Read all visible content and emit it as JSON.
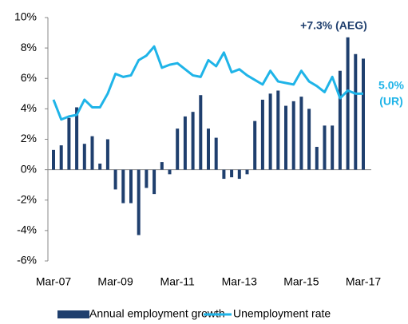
{
  "chart_data": {
    "type": "bar_line",
    "categories": [
      "Mar-07",
      null,
      null,
      null,
      null,
      null,
      null,
      null,
      "Mar-09",
      null,
      null,
      null,
      null,
      null,
      null,
      null,
      "Mar-11",
      null,
      null,
      null,
      null,
      null,
      null,
      null,
      "Mar-13",
      null,
      null,
      null,
      null,
      null,
      null,
      null,
      "Mar-15",
      null,
      null,
      null,
      null,
      null,
      null,
      null,
      "Mar-17"
    ],
    "series": [
      {
        "name": "Annual employment growth",
        "type": "bar",
        "color": "#1f3f6e",
        "values": [
          1.3,
          1.6,
          3.4,
          4.1,
          1.7,
          2.2,
          0.4,
          2.0,
          -1.3,
          -2.2,
          -2.2,
          -4.3,
          -1.2,
          -1.6,
          0.5,
          -0.3,
          2.7,
          3.5,
          3.8,
          4.9,
          2.7,
          2.1,
          -0.6,
          -0.5,
          -0.6,
          -0.3,
          3.2,
          4.6,
          5.0,
          5.2,
          4.2,
          4.5,
          4.8,
          4.0,
          1.5,
          2.9,
          2.9,
          6.5,
          8.7,
          7.6,
          7.3
        ]
      },
      {
        "name": "Unemployment rate",
        "type": "line",
        "color": "#1fb4e8",
        "values": [
          4.6,
          3.3,
          3.5,
          3.6,
          4.6,
          4.1,
          4.1,
          5.0,
          6.3,
          6.1,
          6.2,
          7.2,
          7.5,
          8.1,
          6.7,
          6.9,
          7.0,
          6.6,
          6.2,
          6.1,
          7.2,
          6.8,
          7.7,
          6.4,
          6.6,
          6.2,
          5.9,
          5.6,
          6.5,
          5.8,
          5.7,
          5.6,
          6.5,
          5.8,
          5.5,
          5.1,
          6.1,
          4.7,
          5.2,
          5.0,
          5.0
        ]
      }
    ],
    "ylim": [
      -6,
      10
    ],
    "yticks": [
      {
        "value": -6,
        "label": "-6%"
      },
      {
        "value": -4,
        "label": "-4%"
      },
      {
        "value": -2,
        "label": "-2%"
      },
      {
        "value": 0,
        "label": "0%"
      },
      {
        "value": 2,
        "label": "2%"
      },
      {
        "value": 4,
        "label": "4%"
      },
      {
        "value": 6,
        "label": "6%"
      },
      {
        "value": 8,
        "label": "8%"
      },
      {
        "value": 10,
        "label": "10%"
      }
    ],
    "annotations": [
      "+7.3% (AEG)",
      "5.0%",
      "(UR)"
    ],
    "legend": "bottom"
  }
}
